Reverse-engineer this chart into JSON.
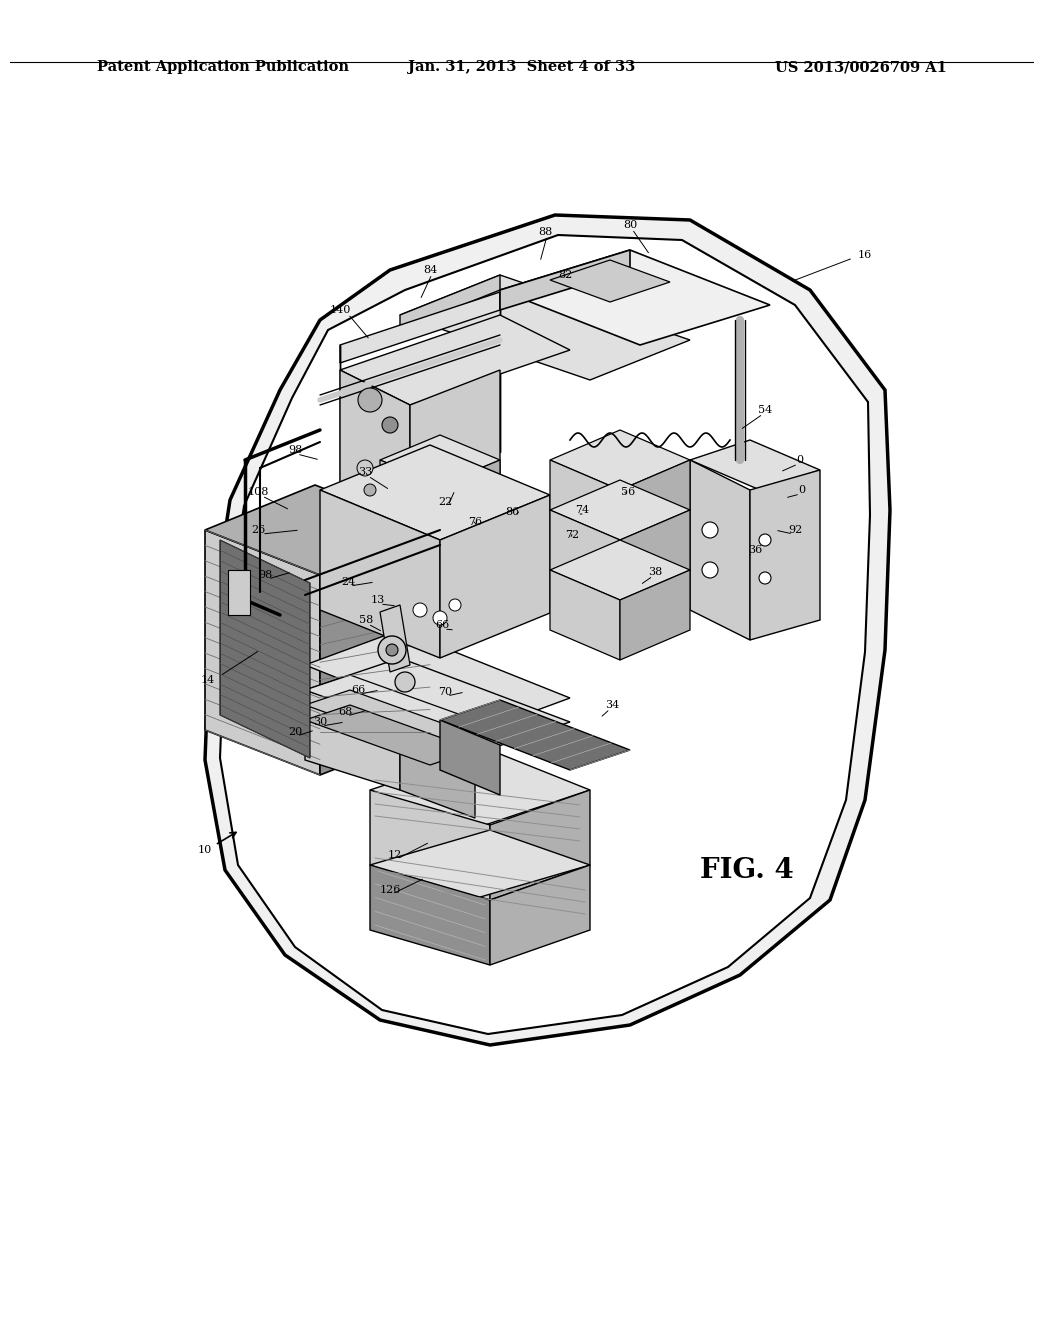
{
  "background_color": "#ffffff",
  "header_left": "Patent Application Publication",
  "header_center": "Jan. 31, 2013  Sheet 4 of 33",
  "header_right": "US 2013/0026709 A1",
  "fig_label": "FIG. 4",
  "header_fontsize": 10.5,
  "fig_label_fontsize": 20,
  "label_fontsize": 8.0
}
